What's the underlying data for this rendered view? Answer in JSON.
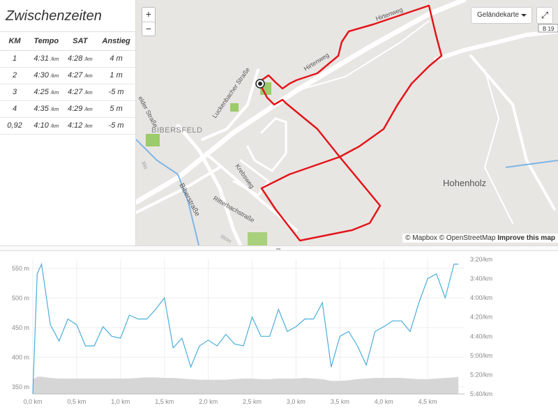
{
  "splits": {
    "title": "Zwischenzeiten",
    "headers": [
      "KM",
      "Tempo",
      "SAT",
      "Anstieg"
    ],
    "unit": "/km",
    "rows": [
      {
        "km": "1",
        "tempo": "4:31",
        "sat": "4:28",
        "anstieg": "4 m"
      },
      {
        "km": "2",
        "tempo": "4:30",
        "sat": "4:27",
        "anstieg": "1 m"
      },
      {
        "km": "3",
        "tempo": "4:25",
        "sat": "4:27",
        "anstieg": "-5 m"
      },
      {
        "km": "4",
        "tempo": "4:35",
        "sat": "4:29",
        "anstieg": "5 m"
      },
      {
        "km": "0,92",
        "tempo": "4:10",
        "sat": "4:12",
        "anstieg": "-5 m"
      }
    ]
  },
  "map": {
    "zoom_in": "+",
    "zoom_out": "−",
    "map_type": "Geländekarte",
    "fullscreen_icon": "⤢",
    "labels": {
      "hirtenweg": "Hirtenweg",
      "hirtenweg2": "Hirtenweg",
      "luckenbacher": "Luckenbacher Straße",
      "felder": "elder Straße",
      "bibersfeld": "BIBERSFELD",
      "krebsweg": "Krebsweg",
      "ritterbach": "Ritterbachstraße",
      "biberstrasse": "Biberstraße",
      "hohenholz": "Hohenholz",
      "b19": "B 19",
      "c350a": "350",
      "c350b": "350m"
    },
    "attribution": {
      "mapbox": "© Mapbox",
      "osm": "© OpenStreetMap",
      "improve": "Improve this map"
    },
    "colors": {
      "route": "#e3151a",
      "background": "#e8e6e3",
      "green": "#9ccb6a",
      "water": "#7fb5e6"
    }
  },
  "chart": {
    "x_ticks": [
      "0,0 km",
      "0,5 km",
      "1,0 km",
      "1,5 km",
      "2,0 km",
      "2,5 km",
      "3,0 km",
      "3,5 km",
      "4,0 km",
      "4,5 km"
    ],
    "y_left_ticks": [
      "550 m",
      "500 m",
      "450 m",
      "400 m",
      "350 m"
    ],
    "y_right_ticks": [
      "3:20/km",
      "3:40/km",
      "4:00/km",
      "4:20/km",
      "4:40/km",
      "5:00/km",
      "5:20/km",
      "5:40/km"
    ],
    "colors": {
      "pace": "#4aaed9",
      "elevation": "#d6d6d6"
    }
  },
  "chart_data": {
    "type": "line",
    "x": [
      0.0,
      0.05,
      0.1,
      0.2,
      0.3,
      0.4,
      0.5,
      0.6,
      0.7,
      0.8,
      0.9,
      1.0,
      1.1,
      1.2,
      1.3,
      1.4,
      1.5,
      1.6,
      1.7,
      1.8,
      1.9,
      2.0,
      2.1,
      2.2,
      2.3,
      2.4,
      2.5,
      2.6,
      2.7,
      2.8,
      2.9,
      3.0,
      3.1,
      3.2,
      3.3,
      3.4,
      3.5,
      3.6,
      3.7,
      3.8,
      3.9,
      4.0,
      4.1,
      4.2,
      4.3,
      4.4,
      4.5,
      4.6,
      4.7,
      4.8,
      4.85
    ],
    "series": [
      {
        "values_pace_sec_per_km": [
          340,
          215,
          205,
          268,
          285,
          262,
          268,
          290,
          290,
          270,
          280,
          282,
          258,
          262,
          262,
          252,
          240,
          292,
          282,
          312,
          290,
          284,
          290,
          278,
          288,
          290,
          260,
          280,
          280,
          252,
          275,
          270,
          262,
          262,
          245,
          312,
          280,
          275,
          290,
          310,
          275,
          270,
          264,
          264,
          275,
          245,
          220,
          215,
          240,
          205,
          205
        ]
      },
      {
        "values_elevation_m": [
          362,
          367,
          367,
          365,
          364,
          364,
          364,
          364,
          364,
          364,
          364,
          364,
          364,
          365,
          366,
          366,
          365,
          365,
          364,
          363,
          362,
          362,
          362,
          362,
          363,
          364,
          364,
          363,
          363,
          364,
          364,
          364,
          365,
          364,
          363,
          360,
          360,
          361,
          363,
          364,
          365,
          365,
          365,
          365,
          364,
          363,
          363,
          364,
          365,
          366,
          367
        ]
      }
    ],
    "xlim": [
      0,
      4.92
    ],
    "ylim_left": [
      338,
      565
    ],
    "ylim_right_sec_per_km": [
      200,
      340
    ]
  }
}
